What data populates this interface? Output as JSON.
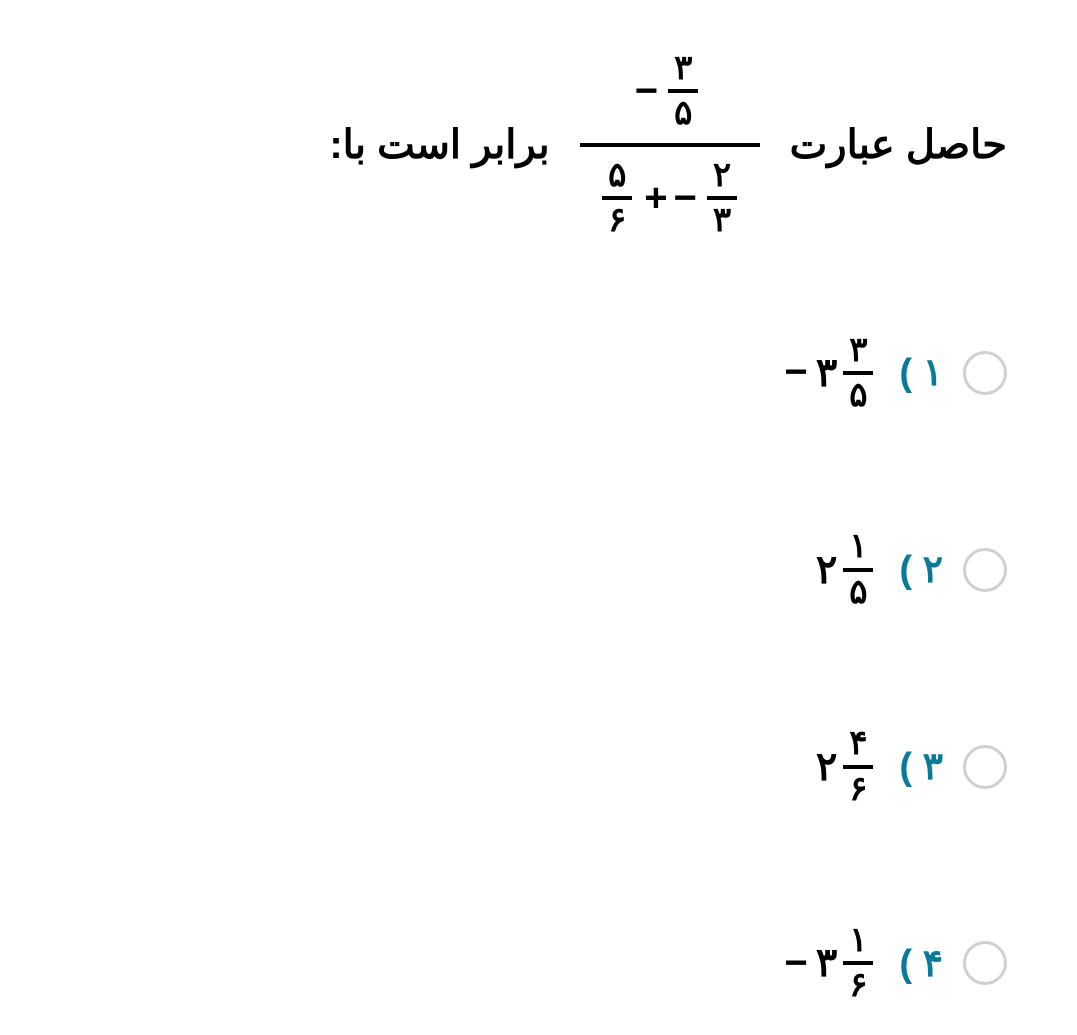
{
  "question": {
    "text_before": "حاصل عبارت",
    "text_after": "برابر است با:",
    "expression": {
      "numerator": {
        "sign": "−",
        "frac": {
          "num": "۳",
          "den": "۵"
        }
      },
      "denominator": {
        "term1": {
          "num": "۵",
          "den": "۶"
        },
        "op": "+",
        "sign2": "−",
        "term2": {
          "num": "۲",
          "den": "۳"
        }
      }
    }
  },
  "options": [
    {
      "label": "۱ )",
      "sign": "−",
      "whole": "۳",
      "frac": {
        "num": "۳",
        "den": "۵"
      }
    },
    {
      "label": "۲ )",
      "sign": "",
      "whole": "۲",
      "frac": {
        "num": "۱",
        "den": "۵"
      }
    },
    {
      "label": "۳ )",
      "sign": "",
      "whole": "۲",
      "frac": {
        "num": "۴",
        "den": "۶"
      }
    },
    {
      "label": "۴ )",
      "sign": "−",
      "whole": "۳",
      "frac": {
        "num": "۱",
        "den": "۶"
      }
    }
  ],
  "colors": {
    "text": "#000000",
    "option_label": "#0a7a99",
    "radio_border": "#d0d0d0",
    "background": "#ffffff"
  }
}
